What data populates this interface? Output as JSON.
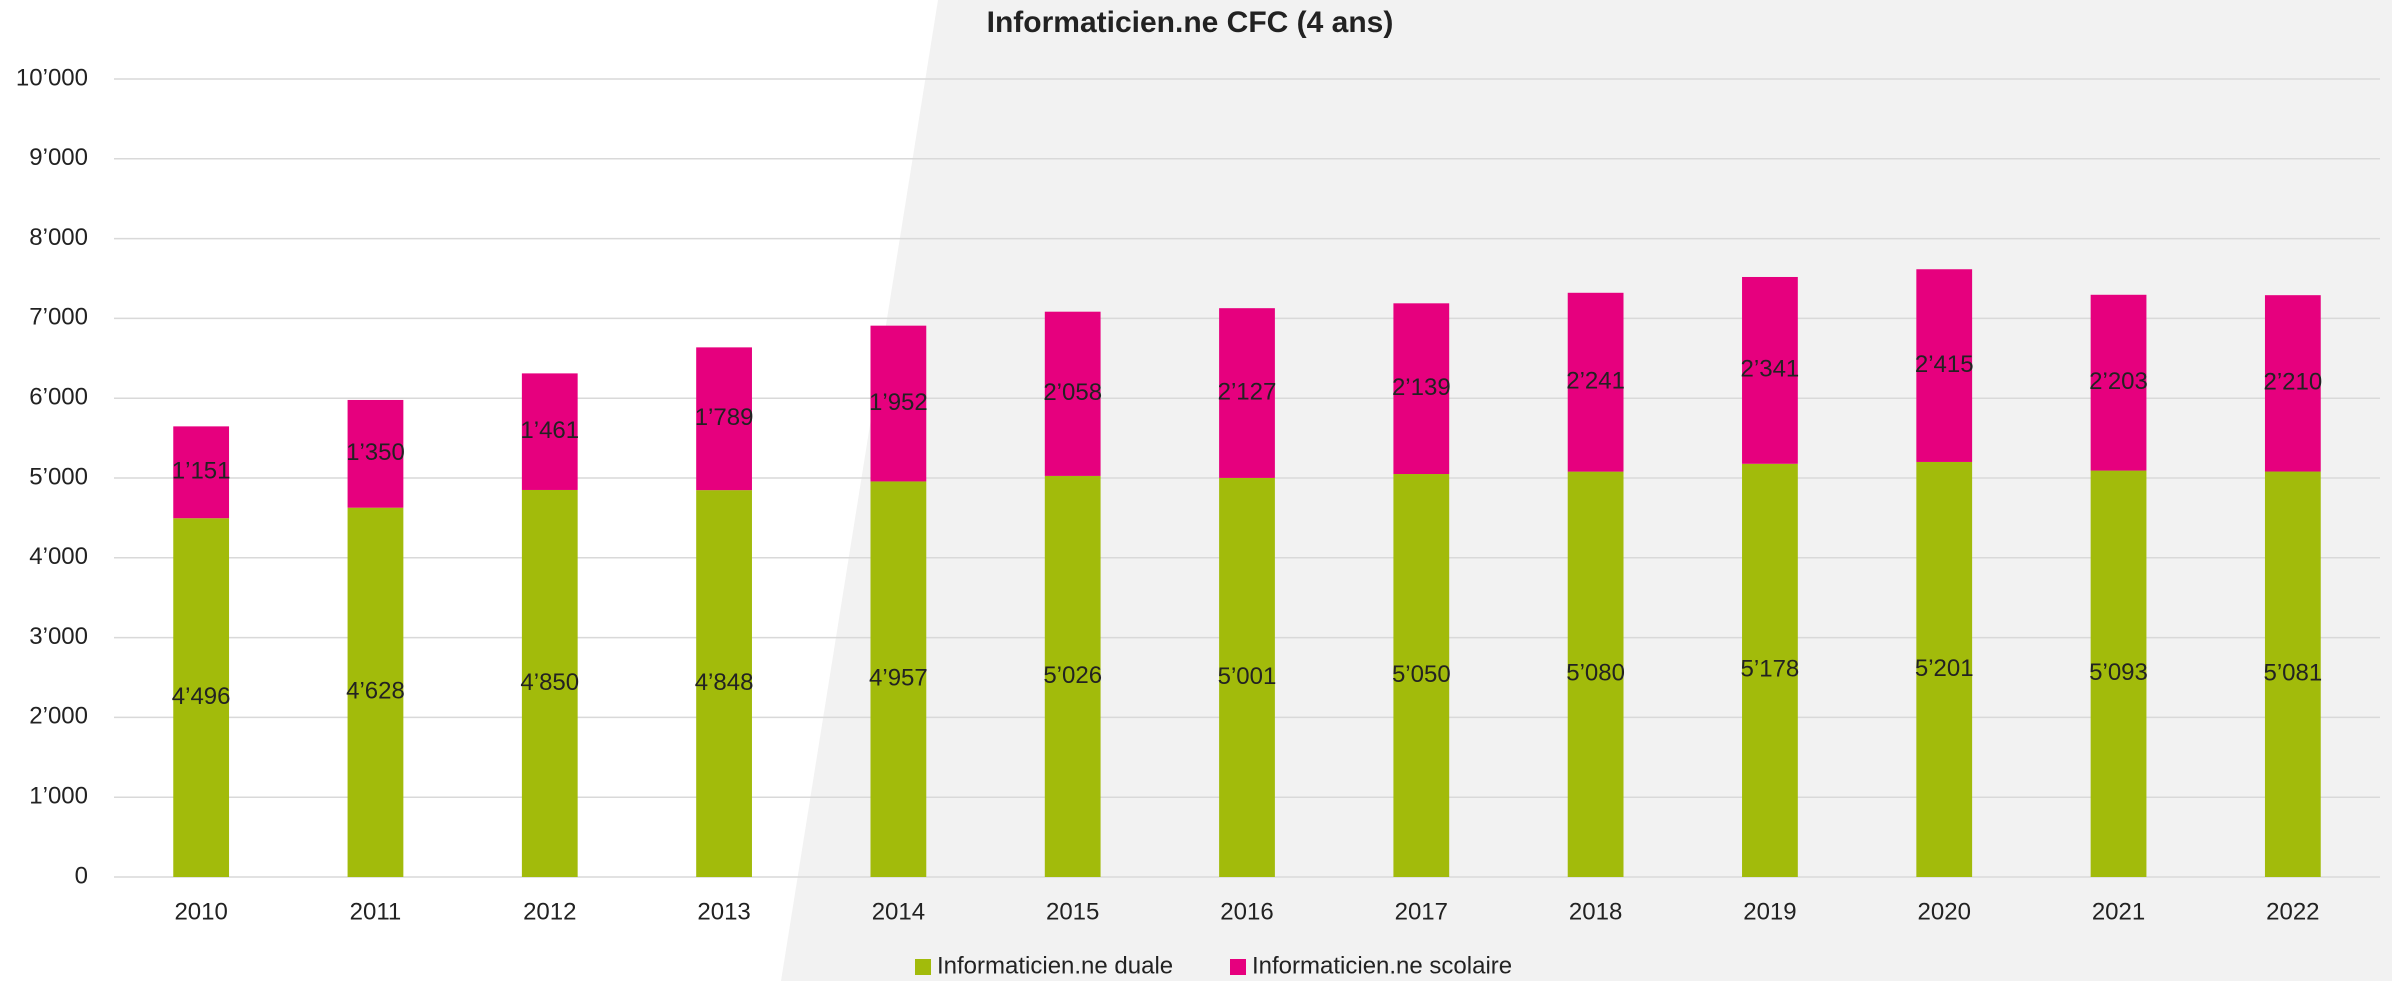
{
  "chart_data": {
    "type": "stacked_bar",
    "title": "Informaticien.ne CFC (4 ans)",
    "categories": [
      "2010",
      "2011",
      "2012",
      "2013",
      "2014",
      "2015",
      "2016",
      "2017",
      "2018",
      "2019",
      "2020",
      "2021",
      "2022"
    ],
    "series": [
      {
        "name": "Informaticien.ne duale",
        "color": "#a2bb0b",
        "values": [
          4496,
          4628,
          4850,
          4848,
          4957,
          5026,
          5001,
          5050,
          5080,
          5178,
          5201,
          5093,
          5081
        ],
        "value_labels": [
          "4’496",
          "4’628",
          "4’850",
          "4’848",
          "4’957",
          "5’026",
          "5’001",
          "5’050",
          "5’080",
          "5’178",
          "5’201",
          "5’093",
          "5’081"
        ]
      },
      {
        "name": "Informaticien.ne scolaire",
        "color": "#e6007e",
        "values": [
          1151,
          1350,
          1461,
          1789,
          1952,
          2058,
          2127,
          2139,
          2241,
          2341,
          2415,
          2203,
          2210
        ],
        "value_labels": [
          "1’151",
          "1’350",
          "1’461",
          "1’789",
          "1’952",
          "2’058",
          "2’127",
          "2’139",
          "2’241",
          "2’341",
          "2’415",
          "2’203",
          "2’210"
        ]
      }
    ],
    "ylim": [
      0,
      10000
    ],
    "yticks": [
      0,
      {
        "value": 1000,
        "label": "1’000"
      },
      {
        "value": 2000,
        "label": "2’000"
      },
      {
        "value": 3000,
        "label": "3’000"
      },
      {
        "value": 4000,
        "label": "4’000"
      },
      {
        "value": 5000,
        "label": "5’000"
      },
      {
        "value": 6000,
        "label": "6’000"
      },
      {
        "value": 7000,
        "label": "7’000"
      },
      {
        "value": 8000,
        "label": "8’000"
      },
      {
        "value": 9000,
        "label": "9’000"
      },
      {
        "value": 10000,
        "label": "10’000"
      }
    ],
    "grid": true,
    "legend": "bottom"
  }
}
